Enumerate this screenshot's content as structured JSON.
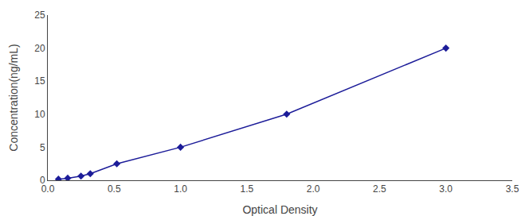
{
  "chart_data": {
    "type": "line",
    "xlabel": "Optical Density",
    "ylabel": "Concentration(ng/mL)",
    "x": [
      0.08,
      0.15,
      0.25,
      0.32,
      0.52,
      1.0,
      1.8,
      3.0
    ],
    "values": [
      0.16,
      0.31,
      0.63,
      1.0,
      2.5,
      5.0,
      10.0,
      20.0
    ],
    "color": "#1c1c99",
    "marker": "diamond",
    "xlim": [
      0,
      3.5
    ],
    "ylim": [
      0,
      25
    ],
    "xticks": [
      {
        "value": 0,
        "label": "0.0"
      },
      0.5,
      {
        "value": 1.0,
        "label": "1.0"
      },
      1.5,
      {
        "value": 2.0,
        "label": "2.0"
      },
      2.5,
      {
        "value": 3.0,
        "label": "3.0"
      },
      3.5
    ],
    "yticks": [
      0,
      5,
      10,
      15,
      20,
      25
    ],
    "grid": false
  }
}
